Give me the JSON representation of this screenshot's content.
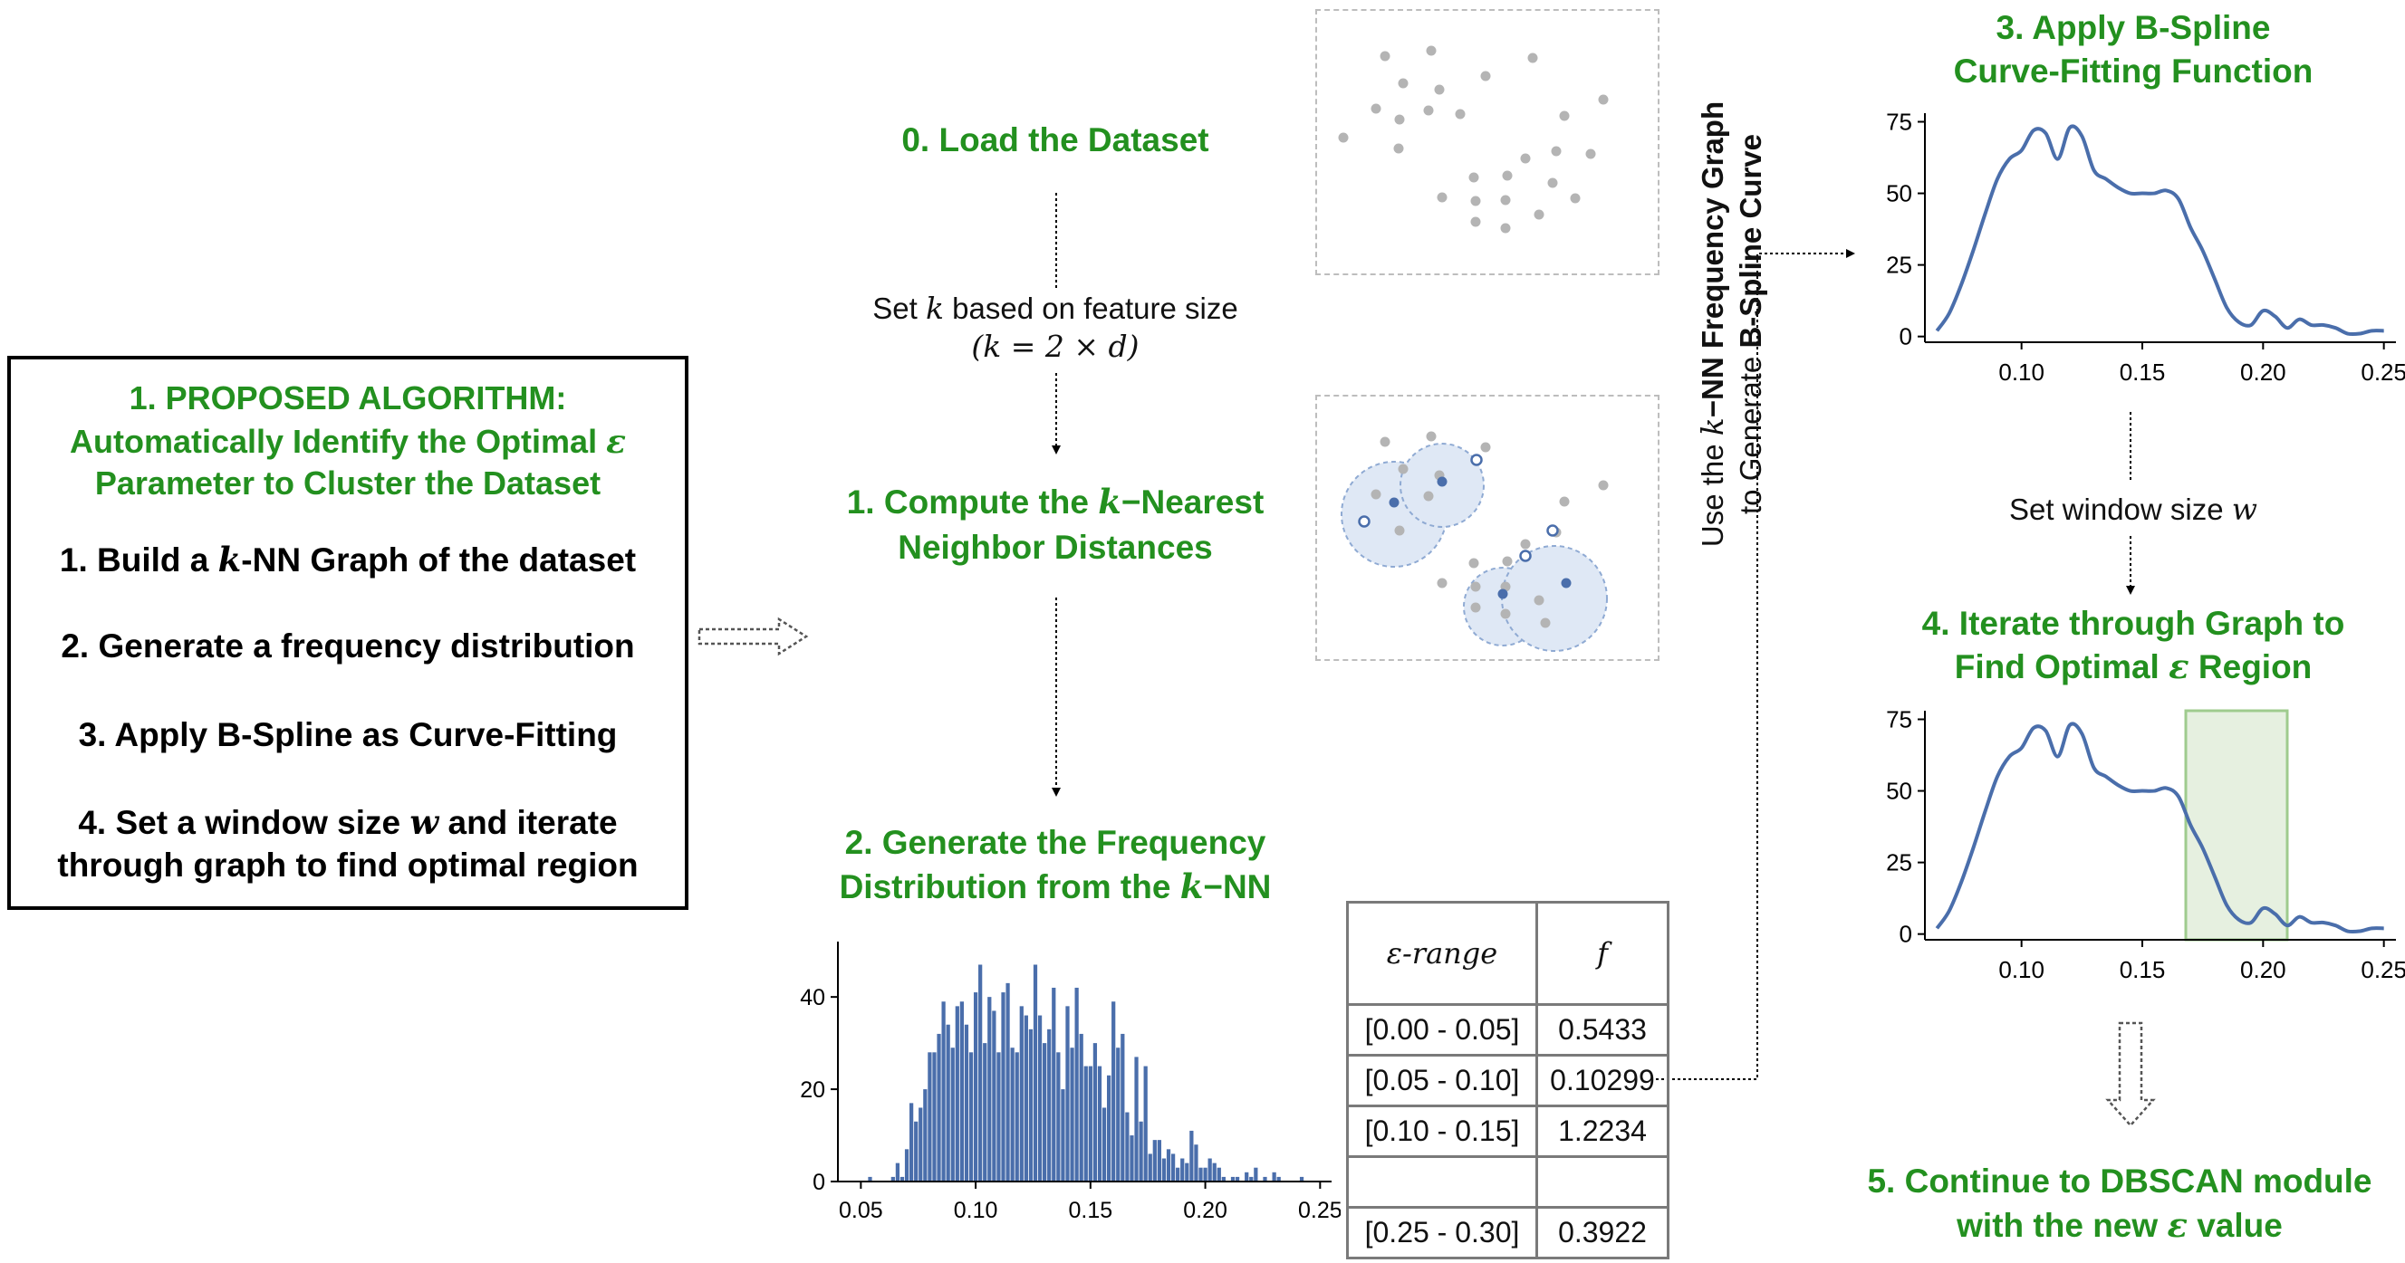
{
  "algorithm": {
    "heading_prefix": "1. PROPOSED ALGORITHM:",
    "heading_line2": "Automatically Identify the Optimal",
    "heading_line3": "Parameter to Cluster the Dataset",
    "eps_symbol": "ε",
    "step1_a": "1. Build a",
    "step1_k": "k",
    "step1_b": "-NN Graph of the dataset",
    "step2": "2. Generate a frequency distribution",
    "step3": "3. Apply B-Spline as Curve-Fitting",
    "step4_a": "4. Set a window size",
    "step4_w": "w",
    "step4_b": "and iterate",
    "step4_c": "through graph to find optimal region"
  },
  "steps": {
    "s0": "0. Load the Dataset",
    "set_k_a": "Set",
    "set_k_k": "k",
    "set_k_b": "based on feature size",
    "set_k_formula": "(k = 2 × d)",
    "s1_a": "1. Compute the",
    "s1_k": "k",
    "s1_b": "−Nearest",
    "s1_c": "Neighbor Distances",
    "s2_a": "2. Generate the Frequency",
    "s2_b": "Distribution from the",
    "s2_k": "k",
    "s2_c": "−NN",
    "rotated_line1_a": "Use the",
    "rotated_line1_k": "k",
    "rotated_line1_b": "−NN Frequency Graph",
    "rotated_line2_a": "to Generate",
    "rotated_line2_b": "B-Spline Curve",
    "s3_a": "3. Apply B-Spline",
    "s3_b": "Curve-Fitting Function",
    "set_w_a": "Set window size",
    "set_w_w": "w",
    "s4_a": "4. Iterate through Graph to",
    "s4_b": "Find Optimal",
    "s4_eps": "ε",
    "s4_c": "Region",
    "s5_a": "5. Continue to DBSCAN module",
    "s5_b": "with the new",
    "s5_eps": "ε",
    "s5_c": "value"
  },
  "table": {
    "header_range": "ε-range",
    "header_f": "f",
    "rows": [
      {
        "range": "[0.00 - 0.05]",
        "f": "0.5433"
      },
      {
        "range": "[0.05 - 0.10]",
        "f": "0.10299"
      },
      {
        "range": "[0.10 - 0.15]",
        "f": "1.2234"
      },
      {
        "range": "",
        "f": ""
      },
      {
        "range": "[0.25 - 0.30]",
        "f": "0.3922"
      }
    ]
  },
  "colors": {
    "green": "#23901f",
    "blue": "#4a6eab",
    "grey_point": "#b4b4b4",
    "highlight": "#e6f0e0"
  },
  "chart_data": [
    {
      "type": "bar",
      "title": "",
      "xlabel": "",
      "ylabel": "",
      "xlim": [
        0.04,
        0.255
      ],
      "ylim": [
        0,
        52
      ],
      "x_ticks": [
        "0.05",
        "0.10",
        "0.15",
        "0.20",
        "0.25"
      ],
      "y_ticks": [
        "0",
        "20",
        "40"
      ],
      "bin_width": 0.00204,
      "x": [
        0.054,
        0.056,
        0.058,
        0.06,
        0.062,
        0.064,
        0.066,
        0.068,
        0.07,
        0.072,
        0.074,
        0.076,
        0.078,
        0.08,
        0.082,
        0.084,
        0.086,
        0.088,
        0.09,
        0.092,
        0.094,
        0.096,
        0.098,
        0.1,
        0.102,
        0.104,
        0.106,
        0.108,
        0.11,
        0.112,
        0.114,
        0.116,
        0.118,
        0.12,
        0.122,
        0.124,
        0.126,
        0.128,
        0.13,
        0.132,
        0.134,
        0.136,
        0.138,
        0.14,
        0.142,
        0.144,
        0.146,
        0.148,
        0.15,
        0.152,
        0.154,
        0.156,
        0.158,
        0.16,
        0.162,
        0.164,
        0.166,
        0.168,
        0.17,
        0.172,
        0.174,
        0.176,
        0.178,
        0.18,
        0.182,
        0.184,
        0.186,
        0.188,
        0.19,
        0.192,
        0.194,
        0.196,
        0.198,
        0.2,
        0.202,
        0.204,
        0.206,
        0.208,
        0.21,
        0.212,
        0.214,
        0.216,
        0.218,
        0.22,
        0.222,
        0.224,
        0.226,
        0.228,
        0.23,
        0.232,
        0.234,
        0.236,
        0.238,
        0.24,
        0.242,
        0.244
      ],
      "values": [
        1,
        0,
        0,
        0,
        0,
        1,
        4,
        1,
        7,
        17,
        13,
        16,
        20,
        28,
        28,
        32,
        39,
        34,
        29,
        38,
        39,
        34,
        28,
        41,
        47,
        30,
        40,
        37,
        28,
        41,
        43,
        29,
        28,
        38,
        36,
        33,
        47,
        36,
        30,
        33,
        42,
        28,
        20,
        38,
        29,
        42,
        32,
        25,
        25,
        30,
        25,
        16,
        23,
        39,
        29,
        32,
        15,
        10,
        27,
        13,
        25,
        6,
        9,
        9,
        5,
        7,
        6,
        3,
        5,
        4,
        11,
        8,
        3,
        3,
        5,
        4,
        3,
        1,
        0,
        1,
        1,
        0,
        2,
        1,
        3,
        0,
        1,
        0,
        2,
        1,
        0,
        0,
        0,
        0,
        1,
        0
      ]
    },
    {
      "type": "line",
      "title": "",
      "xlabel": "",
      "ylabel": "",
      "xlim": [
        0.06,
        0.255
      ],
      "ylim": [
        -2,
        78
      ],
      "x_ticks": [
        "0.10",
        "0.15",
        "0.20",
        "0.25"
      ],
      "y_ticks": [
        "0",
        "25",
        "50",
        "75"
      ],
      "x": [
        0.065,
        0.07,
        0.075,
        0.08,
        0.085,
        0.09,
        0.095,
        0.1,
        0.105,
        0.11,
        0.115,
        0.12,
        0.125,
        0.13,
        0.135,
        0.14,
        0.145,
        0.15,
        0.155,
        0.16,
        0.165,
        0.17,
        0.175,
        0.18,
        0.185,
        0.19,
        0.195,
        0.2,
        0.205,
        0.21,
        0.215,
        0.22,
        0.225,
        0.23,
        0.235,
        0.24,
        0.245,
        0.25
      ],
      "values": [
        2,
        8,
        18,
        30,
        43,
        55,
        62,
        65,
        72,
        71,
        62,
        73,
        70,
        58,
        55,
        52,
        50,
        50,
        50,
        51,
        48,
        38,
        30,
        20,
        10,
        5,
        4,
        9,
        7,
        3,
        6,
        4,
        4,
        3,
        1,
        1,
        2,
        2
      ]
    },
    {
      "type": "line",
      "title": "",
      "xlabel": "",
      "ylabel": "",
      "xlim": [
        0.06,
        0.255
      ],
      "ylim": [
        -2,
        78
      ],
      "x_ticks": [
        "0.10",
        "0.15",
        "0.20",
        "0.25"
      ],
      "y_ticks": [
        "0",
        "25",
        "50",
        "75"
      ],
      "highlight_region": [
        0.168,
        0.21
      ],
      "x": [
        0.065,
        0.07,
        0.075,
        0.08,
        0.085,
        0.09,
        0.095,
        0.1,
        0.105,
        0.11,
        0.115,
        0.12,
        0.125,
        0.13,
        0.135,
        0.14,
        0.145,
        0.15,
        0.155,
        0.16,
        0.165,
        0.17,
        0.175,
        0.18,
        0.185,
        0.19,
        0.195,
        0.2,
        0.205,
        0.21,
        0.215,
        0.22,
        0.225,
        0.23,
        0.235,
        0.24,
        0.245,
        0.25
      ],
      "values": [
        2,
        8,
        18,
        30,
        43,
        55,
        62,
        65,
        72,
        71,
        62,
        73,
        70,
        58,
        55,
        52,
        50,
        50,
        50,
        51,
        48,
        38,
        30,
        20,
        10,
        5,
        4,
        9,
        7,
        3,
        6,
        4,
        4,
        3,
        1,
        1,
        2,
        2
      ]
    }
  ]
}
